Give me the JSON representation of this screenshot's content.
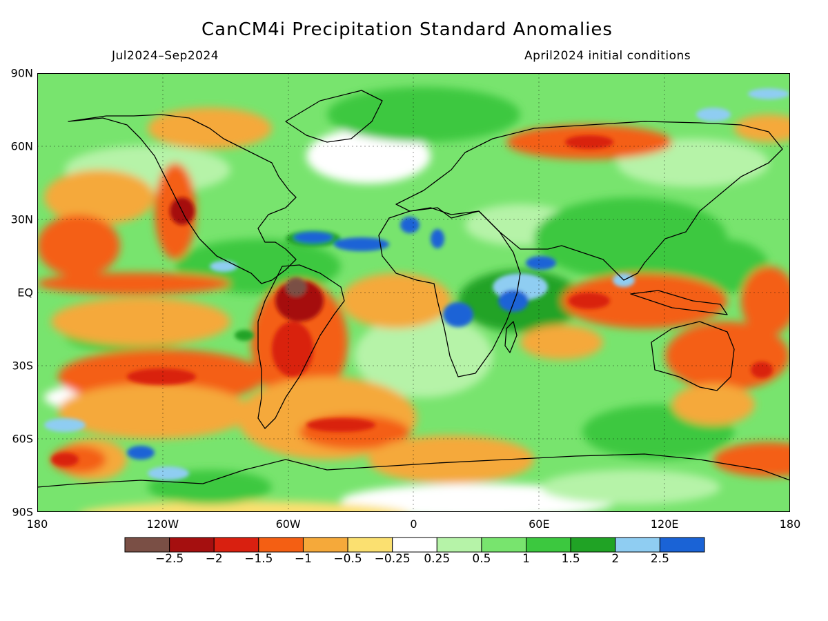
{
  "map": {
    "title": "CanCM4i Precipitation Standard Anomalies",
    "period_label": "Jul2024–Sep2024",
    "init_label": "April2024 initial conditions",
    "latitude_labels": [
      "90N",
      "60N",
      "30N",
      "EQ",
      "30S",
      "60S",
      "90S"
    ],
    "longitude_labels": [
      "180",
      "120W",
      "60W",
      "0",
      "60E",
      "120E",
      "180"
    ],
    "colorbar": {
      "colors": [
        "#7a4f45",
        "#a50f0f",
        "#d92010",
        "#f45f13",
        "#f5a93a",
        "#fbe070",
        "#ffffff",
        "#b6f3a8",
        "#78e46e",
        "#3cc83f",
        "#20a325",
        "#8fcdf2",
        "#1a63d6"
      ],
      "labels": [
        "−2.5",
        "−2",
        "−1.5",
        "−1",
        "−0.5",
        "−0.25",
        "0.25",
        "0.5",
        "1",
        "1.5",
        "2",
        "2.5"
      ]
    }
  }
}
